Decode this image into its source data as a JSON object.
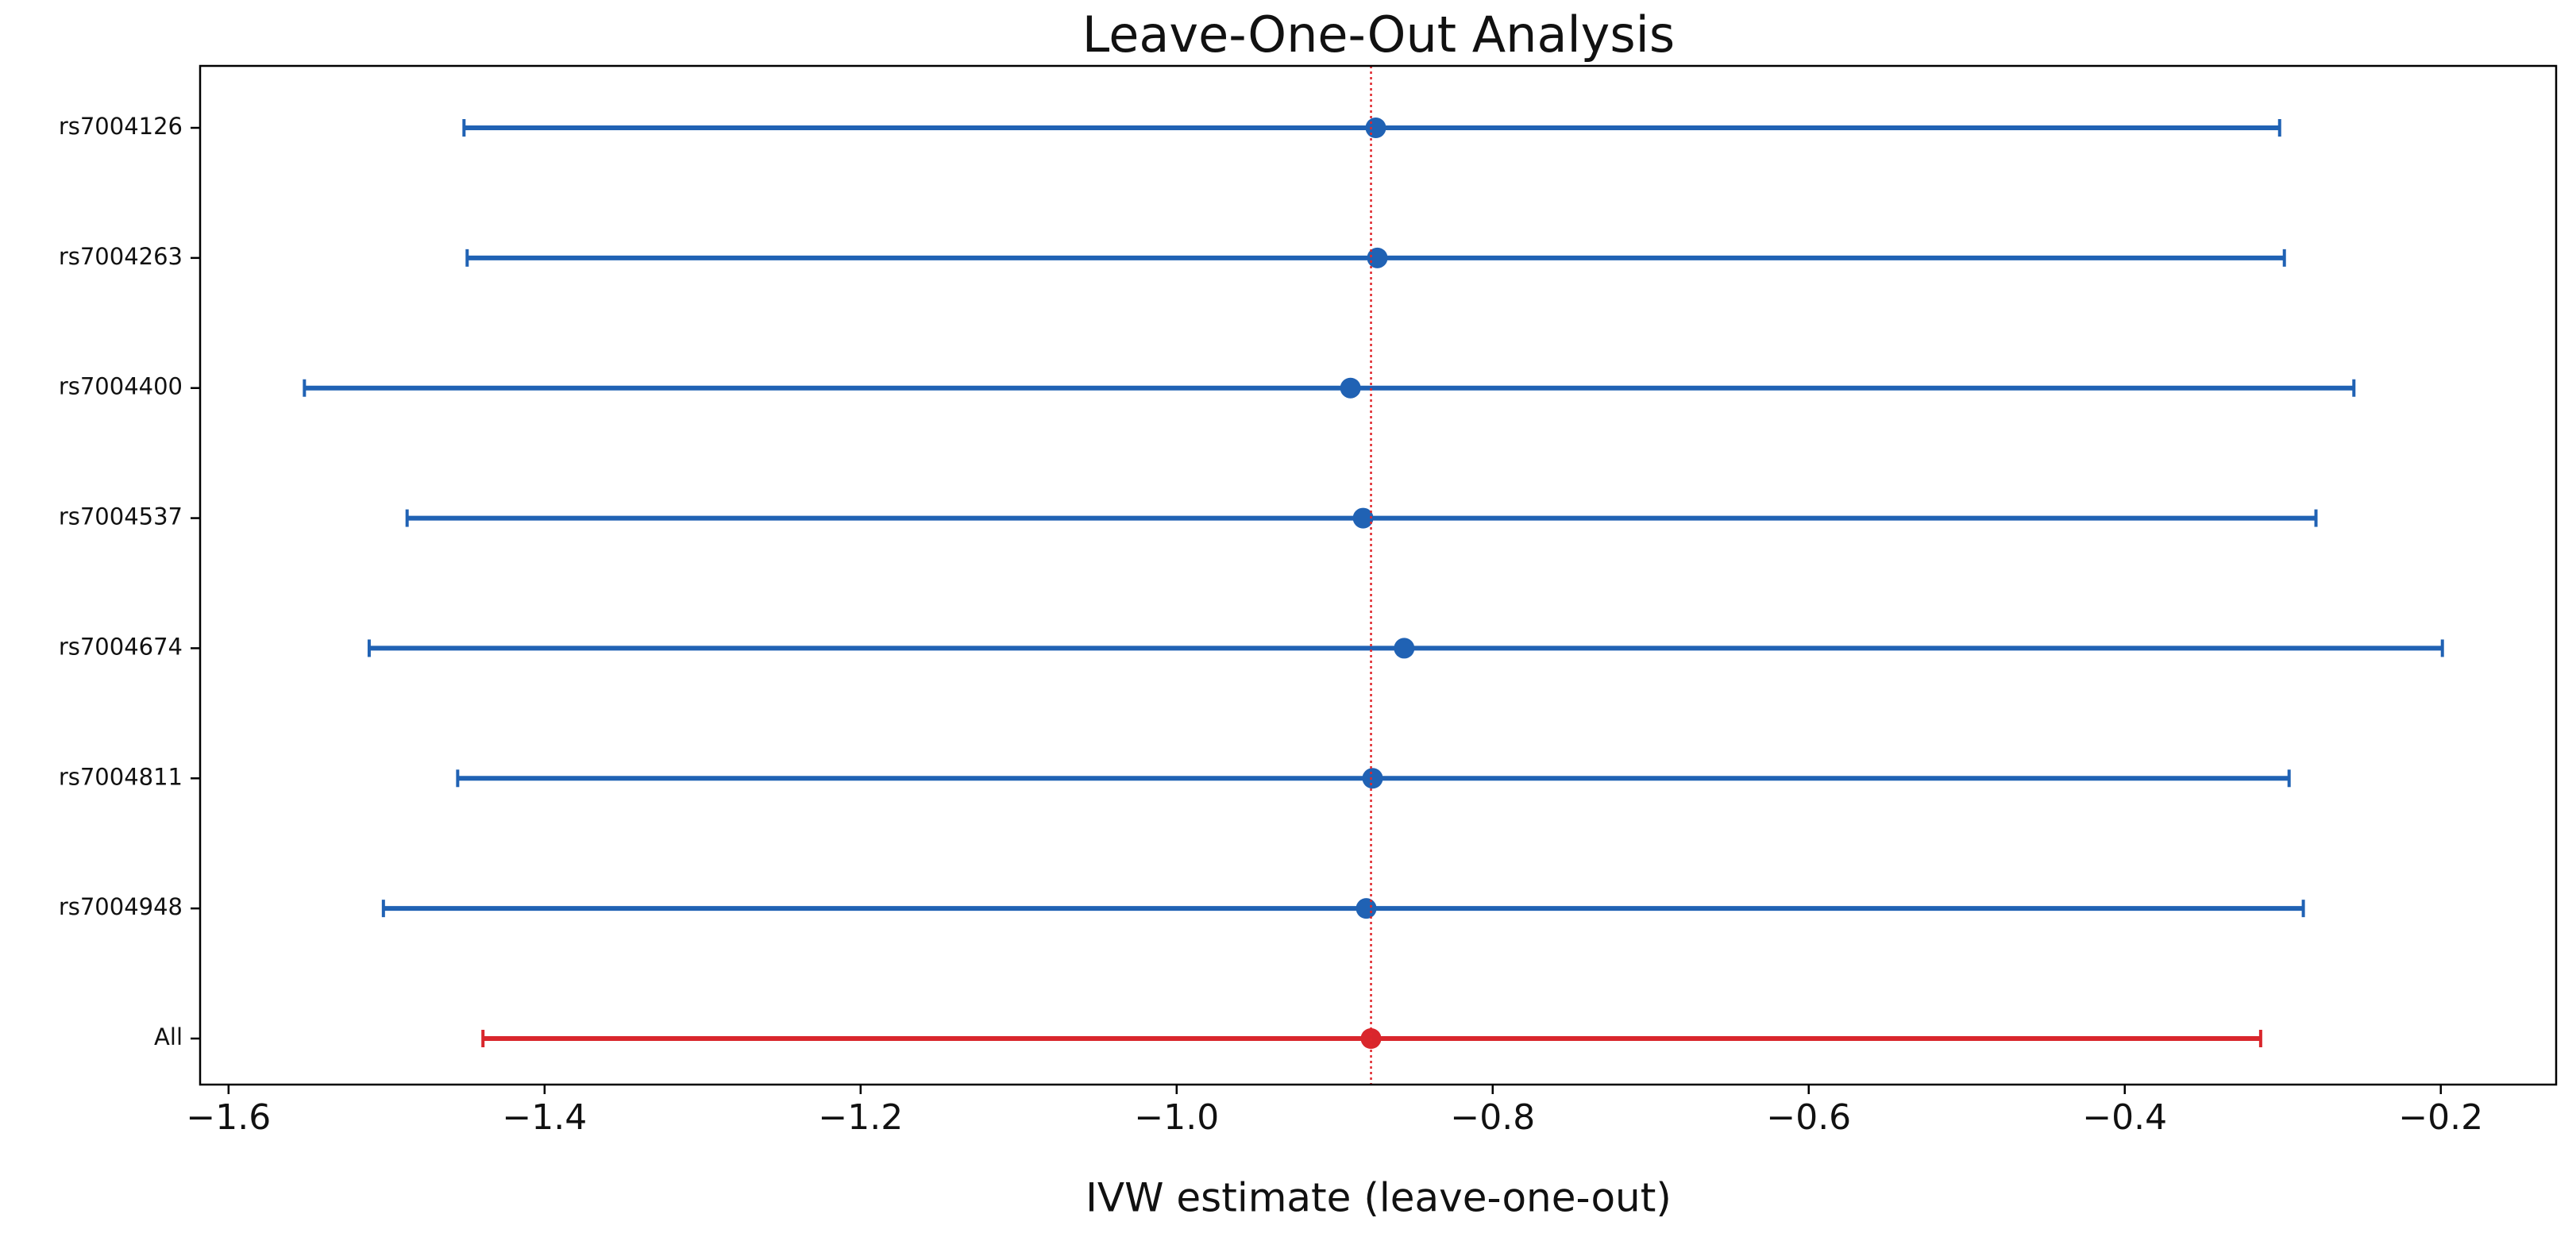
{
  "chart_data": {
    "type": "forest",
    "title": "Leave-One-Out Analysis",
    "x_label": "IVW estimate (leave-one-out)",
    "categories": [
      "rs7004126",
      "rs7004263",
      "rs7004400",
      "rs7004537",
      "rs7004674",
      "rs7004811",
      "rs7004948",
      "All"
    ],
    "values": [
      -0.874,
      -0.873,
      -0.89,
      -0.882,
      -0.856,
      -0.876,
      -0.88,
      -0.877
    ],
    "lower": [
      -1.451,
      -1.449,
      -1.552,
      -1.487,
      -1.511,
      -1.455,
      -1.502,
      -1.439
    ],
    "upper": [
      -0.302,
      -0.299,
      -0.255,
      -0.279,
      -0.199,
      -0.296,
      -0.287,
      -0.314
    ],
    "colors": [
      "#2062b4",
      "#2062b4",
      "#2062b4",
      "#2062b4",
      "#2062b4",
      "#2062b4",
      "#2062b4",
      "#d9262c"
    ],
    "reference_line": -0.877,
    "reference_color": "#e0272c",
    "xlim": [
      -1.618,
      -0.127
    ],
    "xticks": [
      {
        "value": -1.6,
        "label": "−1.6"
      },
      {
        "value": -1.4,
        "label": "−1.4"
      },
      {
        "value": -1.2,
        "label": "−1.2"
      },
      {
        "value": -1.0,
        "label": "−1.0"
      },
      {
        "value": -0.8,
        "label": "−0.8"
      },
      {
        "value": -0.6,
        "label": "−0.6"
      },
      {
        "value": -0.4,
        "label": "−0.4"
      },
      {
        "value": -0.2,
        "label": "−0.2"
      }
    ]
  }
}
